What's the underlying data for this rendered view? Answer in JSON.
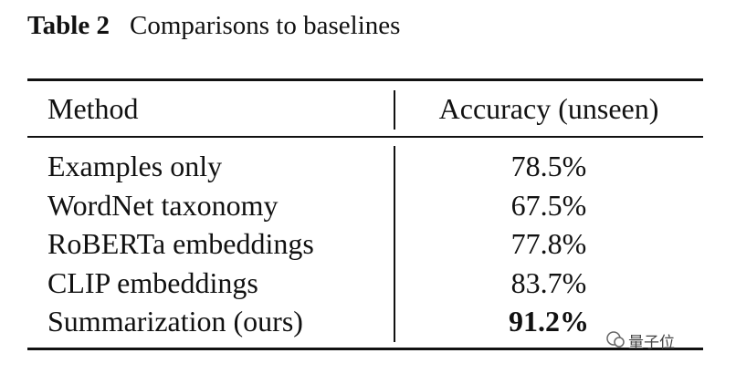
{
  "caption": {
    "label": "Table 2",
    "text": "Comparisons to baselines"
  },
  "table": {
    "header": [
      "Method",
      "Accuracy (unseen)"
    ],
    "rows": [
      [
        "Examples only",
        "78.5%"
      ],
      [
        "WordNet taxonomy",
        "67.5%"
      ],
      [
        "RoBERTa embeddings",
        "77.8%"
      ],
      [
        "CLIP embeddings",
        "83.7%"
      ],
      [
        "Summarization (ours)",
        "91.2%"
      ]
    ]
  },
  "watermark": "量子位"
}
